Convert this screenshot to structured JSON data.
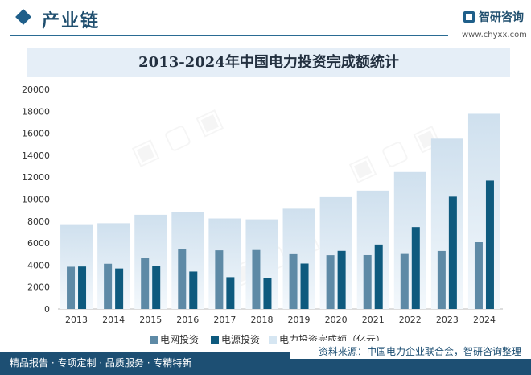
{
  "header": {
    "section_title": "产业链",
    "logo_name": "智研咨询",
    "site_url": "www.chyxx.com"
  },
  "chart_data": {
    "type": "bar",
    "title": "2013-2024年中国电力投资完成额统计",
    "categories": [
      "2013",
      "2014",
      "2015",
      "2016",
      "2017",
      "2018",
      "2019",
      "2020",
      "2021",
      "2022",
      "2023",
      "2024"
    ],
    "series": [
      {
        "name": "电网投资",
        "color": "#5e8aa6",
        "values": [
          3850,
          4120,
          4640,
          5430,
          5340,
          5370,
          4990,
          4900,
          4910,
          5010,
          5280,
          6080
        ]
      },
      {
        "name": "电源投资",
        "color": "#0e5a7e",
        "values": [
          3870,
          3690,
          3940,
          3410,
          2900,
          2790,
          4140,
          5290,
          5870,
          7460,
          10230,
          11690
        ]
      },
      {
        "name": "电力投资完成额（亿元）",
        "color": "#d6e6f2",
        "values": [
          7720,
          7810,
          8580,
          8840,
          8240,
          8160,
          9130,
          10190,
          10780,
          12470,
          15510,
          17770
        ]
      }
    ],
    "yticks": [
      0,
      2000,
      4000,
      6000,
      8000,
      10000,
      12000,
      14000,
      16000,
      18000,
      20000
    ],
    "ylim": [
      0,
      20000
    ],
    "legend_position": "bottom"
  },
  "footer": {
    "left_text": "精品报告 · 专项定制 · 品质服务 · 专精特新",
    "source_text": "资料来源：中国电力企业联合会，智研咨询整理"
  }
}
